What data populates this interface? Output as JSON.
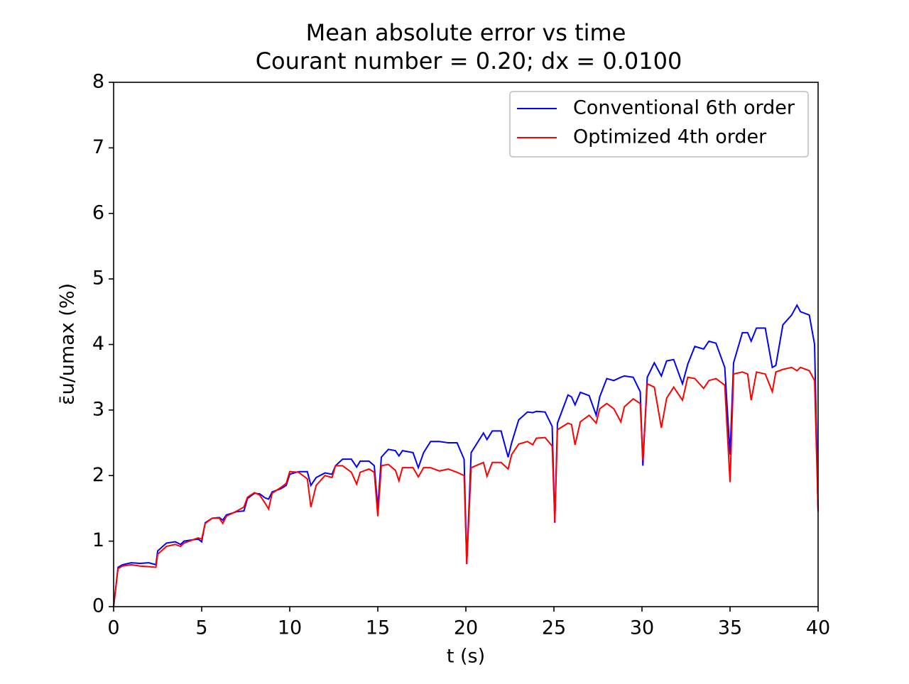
{
  "chart_data": {
    "type": "line",
    "title": "Mean absolute error vs time",
    "subtitle": "Courant number = 0.20; dx = 0.0100",
    "x_label": "t (s)",
    "y_label": "ε̄u/umax (%)",
    "x": [
      0,
      0.25,
      0.5,
      1,
      1.5,
      2,
      2.4,
      2.5,
      3,
      3.5,
      3.8,
      4,
      4.5,
      4.8,
      5,
      5.2,
      5.6,
      6,
      6.2,
      6.4,
      7,
      7.4,
      7.6,
      8,
      8.3,
      8.6,
      8.8,
      9,
      9.5,
      9.8,
      10,
      10.5,
      11,
      11.2,
      11.5,
      12,
      12.4,
      12.6,
      13,
      13.5,
      13.8,
      14,
      14.5,
      14.8,
      15,
      15.2,
      15.6,
      16,
      16.2,
      16.4,
      17,
      17.3,
      17.6,
      18,
      18.5,
      19,
      19.5,
      19.9,
      20.05,
      20.3,
      21,
      21.2,
      21.5,
      22,
      22.4,
      22.6,
      23,
      23.5,
      23.8,
      24,
      24.5,
      24.9,
      25.05,
      25.2,
      25.8,
      26,
      26.2,
      26.5,
      27,
      27.4,
      27.6,
      28,
      28.4,
      28.8,
      29,
      29.5,
      29.9,
      30.05,
      30.3,
      30.7,
      31.1,
      31.4,
      31.8,
      32.3,
      32.6,
      33,
      33.5,
      33.8,
      34.2,
      34.7,
      35,
      35.2,
      35.7,
      36,
      36.2,
      36.5,
      37,
      37.4,
      37.6,
      38,
      38.5,
      38.8,
      39,
      39.5,
      39.8,
      40
    ],
    "series": [
      {
        "name": "Conventional 6th order",
        "color": "#0000ff",
        "values": [
          0,
          0.6,
          0.64,
          0.67,
          0.66,
          0.67,
          0.64,
          0.85,
          0.97,
          0.99,
          0.95,
          1.0,
          1.02,
          1.03,
          0.99,
          1.28,
          1.35,
          1.36,
          1.32,
          1.4,
          1.45,
          1.46,
          1.65,
          1.73,
          1.72,
          1.66,
          1.64,
          1.75,
          1.8,
          1.85,
          2.02,
          2.06,
          2.06,
          1.85,
          1.97,
          2.04,
          2.02,
          2.15,
          2.25,
          2.25,
          2.13,
          2.22,
          2.22,
          2.15,
          1.5,
          2.28,
          2.4,
          2.38,
          2.3,
          2.38,
          2.35,
          2.12,
          2.35,
          2.52,
          2.52,
          2.5,
          2.5,
          2.25,
          0.65,
          2.35,
          2.65,
          2.55,
          2.68,
          2.68,
          2.28,
          2.5,
          2.85,
          2.97,
          2.96,
          2.98,
          2.97,
          2.75,
          1.28,
          2.8,
          3.23,
          3.2,
          3.08,
          3.27,
          3.22,
          2.92,
          3.2,
          3.48,
          3.45,
          3.5,
          3.52,
          3.5,
          3.28,
          2.15,
          3.5,
          3.72,
          3.52,
          3.75,
          3.77,
          3.4,
          3.7,
          3.97,
          3.93,
          4.05,
          4.02,
          3.65,
          2.32,
          3.72,
          4.18,
          4.18,
          4.05,
          4.25,
          4.25,
          3.65,
          3.68,
          4.3,
          4.45,
          4.6,
          4.5,
          4.45,
          4.0,
          1.45
        ]
      },
      {
        "name": "Optimized 4th order",
        "color": "#ff0000",
        "values": [
          0,
          0.58,
          0.62,
          0.64,
          0.62,
          0.61,
          0.6,
          0.8,
          0.92,
          0.95,
          0.92,
          0.97,
          1.02,
          1.05,
          1.03,
          1.27,
          1.35,
          1.35,
          1.27,
          1.38,
          1.46,
          1.52,
          1.67,
          1.74,
          1.7,
          1.58,
          1.49,
          1.73,
          1.82,
          1.88,
          2.06,
          2.05,
          1.95,
          1.52,
          1.85,
          2.0,
          1.97,
          2.15,
          2.15,
          2.05,
          1.87,
          2.05,
          2.1,
          2.05,
          1.38,
          2.15,
          2.17,
          2.08,
          1.92,
          2.12,
          2.12,
          1.98,
          2.12,
          2.12,
          2.07,
          2.1,
          2.05,
          2.0,
          0.65,
          2.12,
          2.2,
          1.99,
          2.2,
          2.2,
          2.1,
          2.32,
          2.48,
          2.52,
          2.47,
          2.57,
          2.58,
          2.45,
          1.3,
          2.7,
          2.8,
          2.78,
          2.47,
          2.82,
          2.92,
          2.8,
          3.02,
          3.1,
          3.02,
          2.82,
          3.05,
          3.17,
          3.1,
          2.23,
          3.4,
          3.35,
          2.73,
          3.18,
          3.35,
          3.15,
          3.5,
          3.48,
          3.33,
          3.45,
          3.48,
          3.38,
          1.9,
          3.55,
          3.58,
          3.55,
          3.15,
          3.58,
          3.55,
          3.28,
          3.58,
          3.62,
          3.65,
          3.6,
          3.65,
          3.6,
          3.45,
          1.45
        ]
      }
    ],
    "xlim": [
      0,
      40
    ],
    "xticks": [
      0,
      5,
      10,
      15,
      20,
      25,
      30,
      35,
      40
    ],
    "ylim": [
      0,
      8
    ],
    "yticks": [
      0,
      1,
      2,
      3,
      4,
      5,
      6,
      7,
      8
    ],
    "grid": false,
    "legend": "upper right"
  }
}
